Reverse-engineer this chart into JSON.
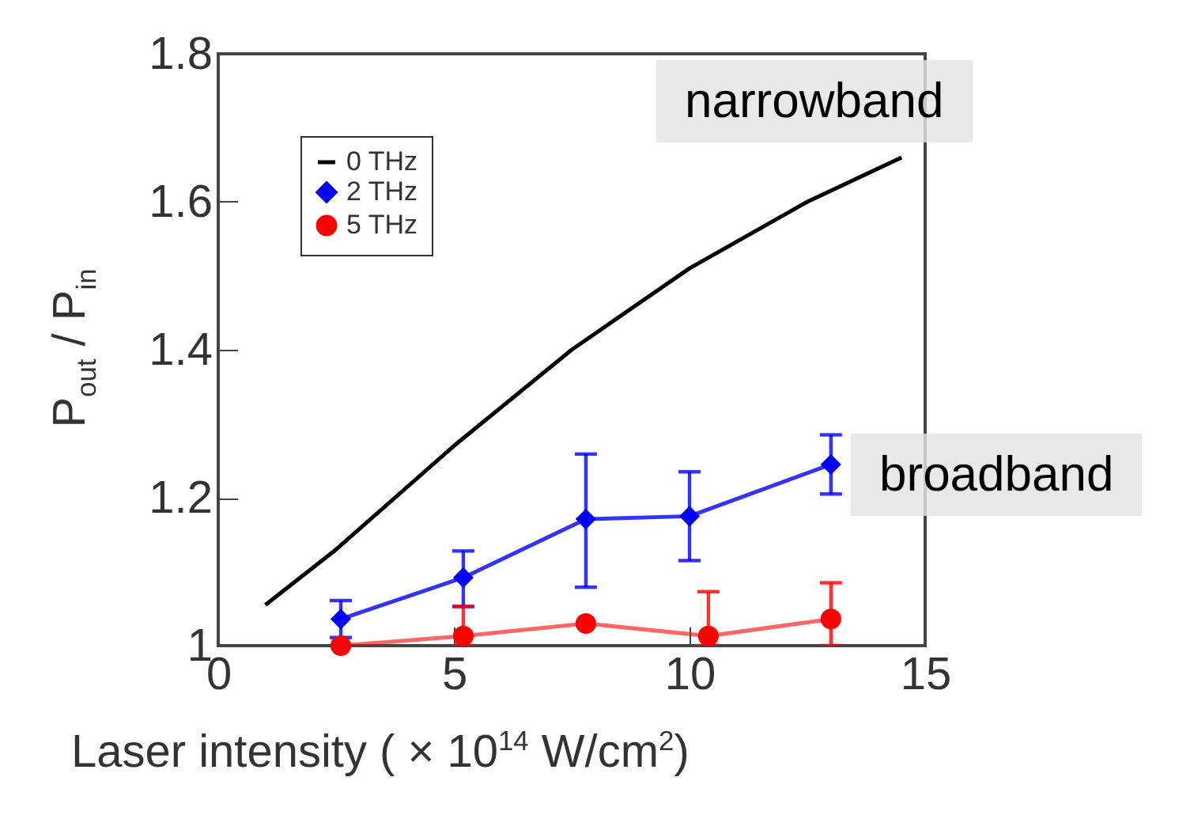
{
  "chart_data": {
    "type": "line",
    "xlabel": "Laser intensity ( × 10$^{14}$ W/cm$^{2}$)",
    "ylabel": "P$_{out}$ / P$_{in}$",
    "xlim": [
      0,
      15
    ],
    "xticks": [
      0,
      5,
      10,
      15
    ],
    "ylim": [
      1,
      1.8
    ],
    "yticks": [
      {
        "value": 1,
        "label": "1"
      },
      1.2,
      1.4,
      1.6,
      1.8
    ],
    "legend": "top left",
    "grid": false,
    "annotations": [
      "narrowband",
      "broadband"
    ],
    "series": [
      {
        "name": "0 THz",
        "color": "#000000",
        "marker": "none",
        "x": [
          1,
          2.5,
          5,
          7.5,
          10,
          12.5,
          14.5
        ],
        "values": [
          1.055,
          1.13,
          1.27,
          1.4,
          1.51,
          1.6,
          1.66
        ]
      },
      {
        "name": "2 THz",
        "color": "#0000ff",
        "marker": "diamond",
        "x": [
          2.6,
          5.2,
          7.8,
          10,
          13
        ],
        "values": [
          1.036,
          1.092,
          1.171,
          1.175,
          1.245
        ],
        "errors": [
          0.025,
          [
            1.053,
            1.128
          ],
          [
            1.079,
            1.259
          ],
          [
            1.115,
            1.235
          ],
          [
            1.205,
            1.285
          ]
        ]
      },
      {
        "name": "5 THz",
        "color": "#ff0000",
        "marker": "circle",
        "x": [
          2.6,
          5.2,
          7.8,
          10.4,
          13
        ],
        "values": [
          1,
          1.013,
          1.03,
          1.013,
          1.036
        ],
        "errors": [
          null,
          [
            1,
            1.053
          ],
          null,
          [
            1,
            1.073
          ],
          [
            1,
            1.085
          ]
        ]
      }
    ]
  }
}
